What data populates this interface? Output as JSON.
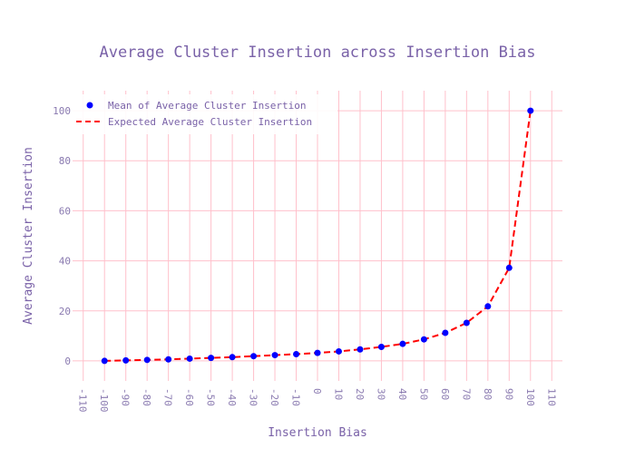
{
  "chart_data": {
    "type": "scatter",
    "title": "Average Cluster Insertion across Insertion Bias",
    "xlabel": "Insertion Bias",
    "ylabel": "Average Cluster Insertion",
    "xlim": [
      -115,
      115
    ],
    "ylim": [
      -8,
      108
    ],
    "x_ticks": [
      -110,
      -100,
      -90,
      -80,
      -70,
      -60,
      -50,
      -40,
      -30,
      -20,
      -10,
      0,
      10,
      20,
      30,
      40,
      50,
      60,
      70,
      80,
      90,
      100,
      110
    ],
    "y_ticks": [
      0,
      20,
      40,
      60,
      80,
      100
    ],
    "grid": true,
    "legend_position": "top-left",
    "series": [
      {
        "name": "Mean of Average Cluster Insertion",
        "mode": "markers",
        "color": "#0000ff",
        "x": [
          -100,
          -90,
          -80,
          -70,
          -60,
          -50,
          -40,
          -30,
          -20,
          -10,
          0,
          10,
          20,
          30,
          40,
          50,
          60,
          70,
          80,
          90,
          100
        ],
        "y": [
          0.0,
          0.2,
          0.4,
          0.6,
          0.9,
          1.2,
          1.5,
          1.9,
          2.3,
          2.7,
          3.2,
          3.8,
          4.6,
          5.6,
          6.8,
          8.6,
          11.2,
          15.2,
          21.8,
          37.2,
          100.0
        ]
      },
      {
        "name": "Expected Average Cluster Insertion",
        "mode": "lines",
        "dash": "dash",
        "color": "#ff0000",
        "x": [
          -100,
          -90,
          -80,
          -70,
          -60,
          -50,
          -40,
          -30,
          -20,
          -10,
          0,
          10,
          20,
          30,
          40,
          50,
          60,
          70,
          80,
          90,
          100
        ],
        "y": [
          0.0,
          0.2,
          0.4,
          0.6,
          0.9,
          1.2,
          1.5,
          1.9,
          2.3,
          2.7,
          3.2,
          3.8,
          4.6,
          5.6,
          6.8,
          8.6,
          11.2,
          15.2,
          21.8,
          37.2,
          100.0
        ]
      }
    ]
  }
}
